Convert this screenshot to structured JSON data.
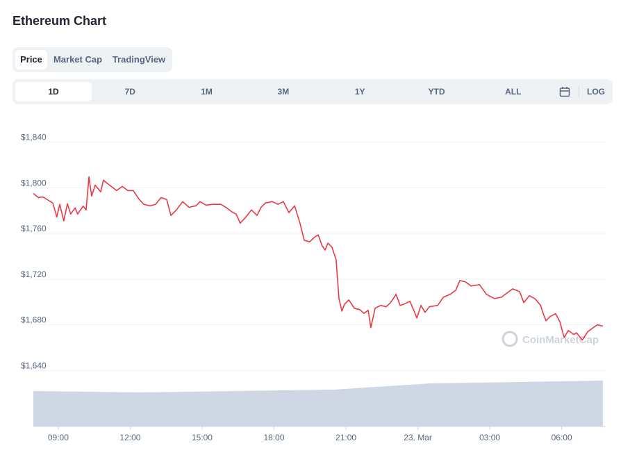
{
  "title": "Ethereum Chart",
  "tabs": [
    "Price",
    "Market Cap",
    "TradingView"
  ],
  "ranges": [
    "1D",
    "7D",
    "1M",
    "3M",
    "1Y",
    "YTD",
    "ALL"
  ],
  "log": "LOG",
  "watermark": "CoinMarketCap",
  "chart_data": {
    "type": "line",
    "color": "#ea3943",
    "x": [
      7.96,
      8.16,
      8.36,
      8.59,
      8.77,
      8.94,
      9.06,
      9.23,
      9.38,
      9.52,
      9.7,
      9.81,
      10.04,
      10.16,
      10.28,
      10.39,
      10.54,
      10.77,
      10.88,
      11.06,
      11.29,
      11.43,
      11.67,
      11.9,
      12.13,
      12.36,
      12.57,
      12.83,
      13.06,
      13.29,
      13.52,
      13.7,
      13.93,
      14.19,
      14.45,
      14.74,
      14.91,
      15.17,
      15.43,
      15.78,
      15.99,
      16.25,
      16.42,
      16.59,
      16.83,
      17.06,
      17.29,
      17.46,
      17.64,
      17.93,
      18.16,
      18.39,
      18.62,
      18.86,
      19.09,
      19.26,
      19.49,
      19.67,
      19.84,
      20.01,
      20.13,
      20.25,
      20.42,
      20.59,
      20.71,
      20.83,
      20.94,
      21.12,
      21.35,
      21.58,
      21.75,
      21.93,
      22.04,
      22.22,
      22.45,
      22.68,
      22.86,
      23.09,
      23.26,
      23.43,
      23.67,
      23.96,
      24.13,
      24.3,
      24.48,
      24.83,
      25.06,
      25.35,
      25.58,
      25.75,
      25.99,
      26.22,
      26.57,
      26.86,
      27.2,
      27.49,
      27.72,
      27.96,
      28.25,
      28.42,
      28.65,
      28.88,
      29.12,
      29.23,
      29.35,
      29.52,
      29.75,
      29.93,
      30.1,
      30.28,
      30.51,
      30.62,
      30.86,
      31.09,
      31.32,
      31.49,
      31.72
    ],
    "values": [
      1795.2,
      1791.5,
      1792,
      1789,
      1786.7,
      1774.5,
      1785.5,
      1771,
      1786,
      1777,
      1782.4,
      1777,
      1784,
      1780.6,
      1809.7,
      1792.7,
      1802.4,
      1796.4,
      1806.7,
      1803.6,
      1800,
      1797.6,
      1801.2,
      1797.6,
      1797.6,
      1790.3,
      1785.5,
      1784.2,
      1785.5,
      1791.5,
      1789.7,
      1775.8,
      1780.6,
      1787.9,
      1783,
      1784.2,
      1787.9,
      1784.8,
      1785.5,
      1785.5,
      1783,
      1778.8,
      1777,
      1769,
      1774.5,
      1780.6,
      1775.8,
      1783,
      1786.7,
      1787.9,
      1785.5,
      1787.9,
      1778.2,
      1784.2,
      1768.5,
      1754,
      1752.7,
      1756.4,
      1758.8,
      1749,
      1745.5,
      1751.5,
      1747.9,
      1737,
      1703,
      1692,
      1698,
      1701.8,
      1694.5,
      1693.3,
      1690,
      1692.7,
      1677.6,
      1694.5,
      1697,
      1695.8,
      1699.4,
      1706.7,
      1697,
      1698.2,
      1700.6,
      1686,
      1697,
      1690.9,
      1695.8,
      1697,
      1704.2,
      1706.7,
      1710.3,
      1718.8,
      1717.6,
      1714,
      1715.2,
      1706.7,
      1703,
      1704.2,
      1707.9,
      1711.5,
      1709,
      1699.4,
      1705.5,
      1703,
      1697,
      1689.7,
      1683.6,
      1687.3,
      1689.7,
      1682.4,
      1669,
      1675,
      1671.5,
      1673,
      1666.7,
      1674,
      1677.6,
      1680,
      1678.8
    ],
    "xlim": [
      7.96,
      31.72
    ],
    "xticks": [
      {
        "value": 9,
        "label": "09:00"
      },
      {
        "value": 12,
        "label": "12:00"
      },
      {
        "value": 15,
        "label": "15:00"
      },
      {
        "value": 18,
        "label": "18:00"
      },
      {
        "value": 21,
        "label": "21:00"
      },
      {
        "value": 24,
        "label": "23. Mar"
      },
      {
        "value": 27,
        "label": "03:00"
      },
      {
        "value": 30,
        "label": "06:00"
      }
    ],
    "ylim": [
      1636,
      1855
    ],
    "yticks": [
      {
        "value": 1640,
        "label": "$1,640"
      },
      {
        "value": 1680,
        "label": "$1,680"
      },
      {
        "value": 1720,
        "label": "$1,720"
      },
      {
        "value": 1760,
        "label": "$1,760"
      },
      {
        "value": 1800,
        "label": "$1,800"
      },
      {
        "value": 1840,
        "label": "$1,840"
      }
    ],
    "grid": true
  }
}
